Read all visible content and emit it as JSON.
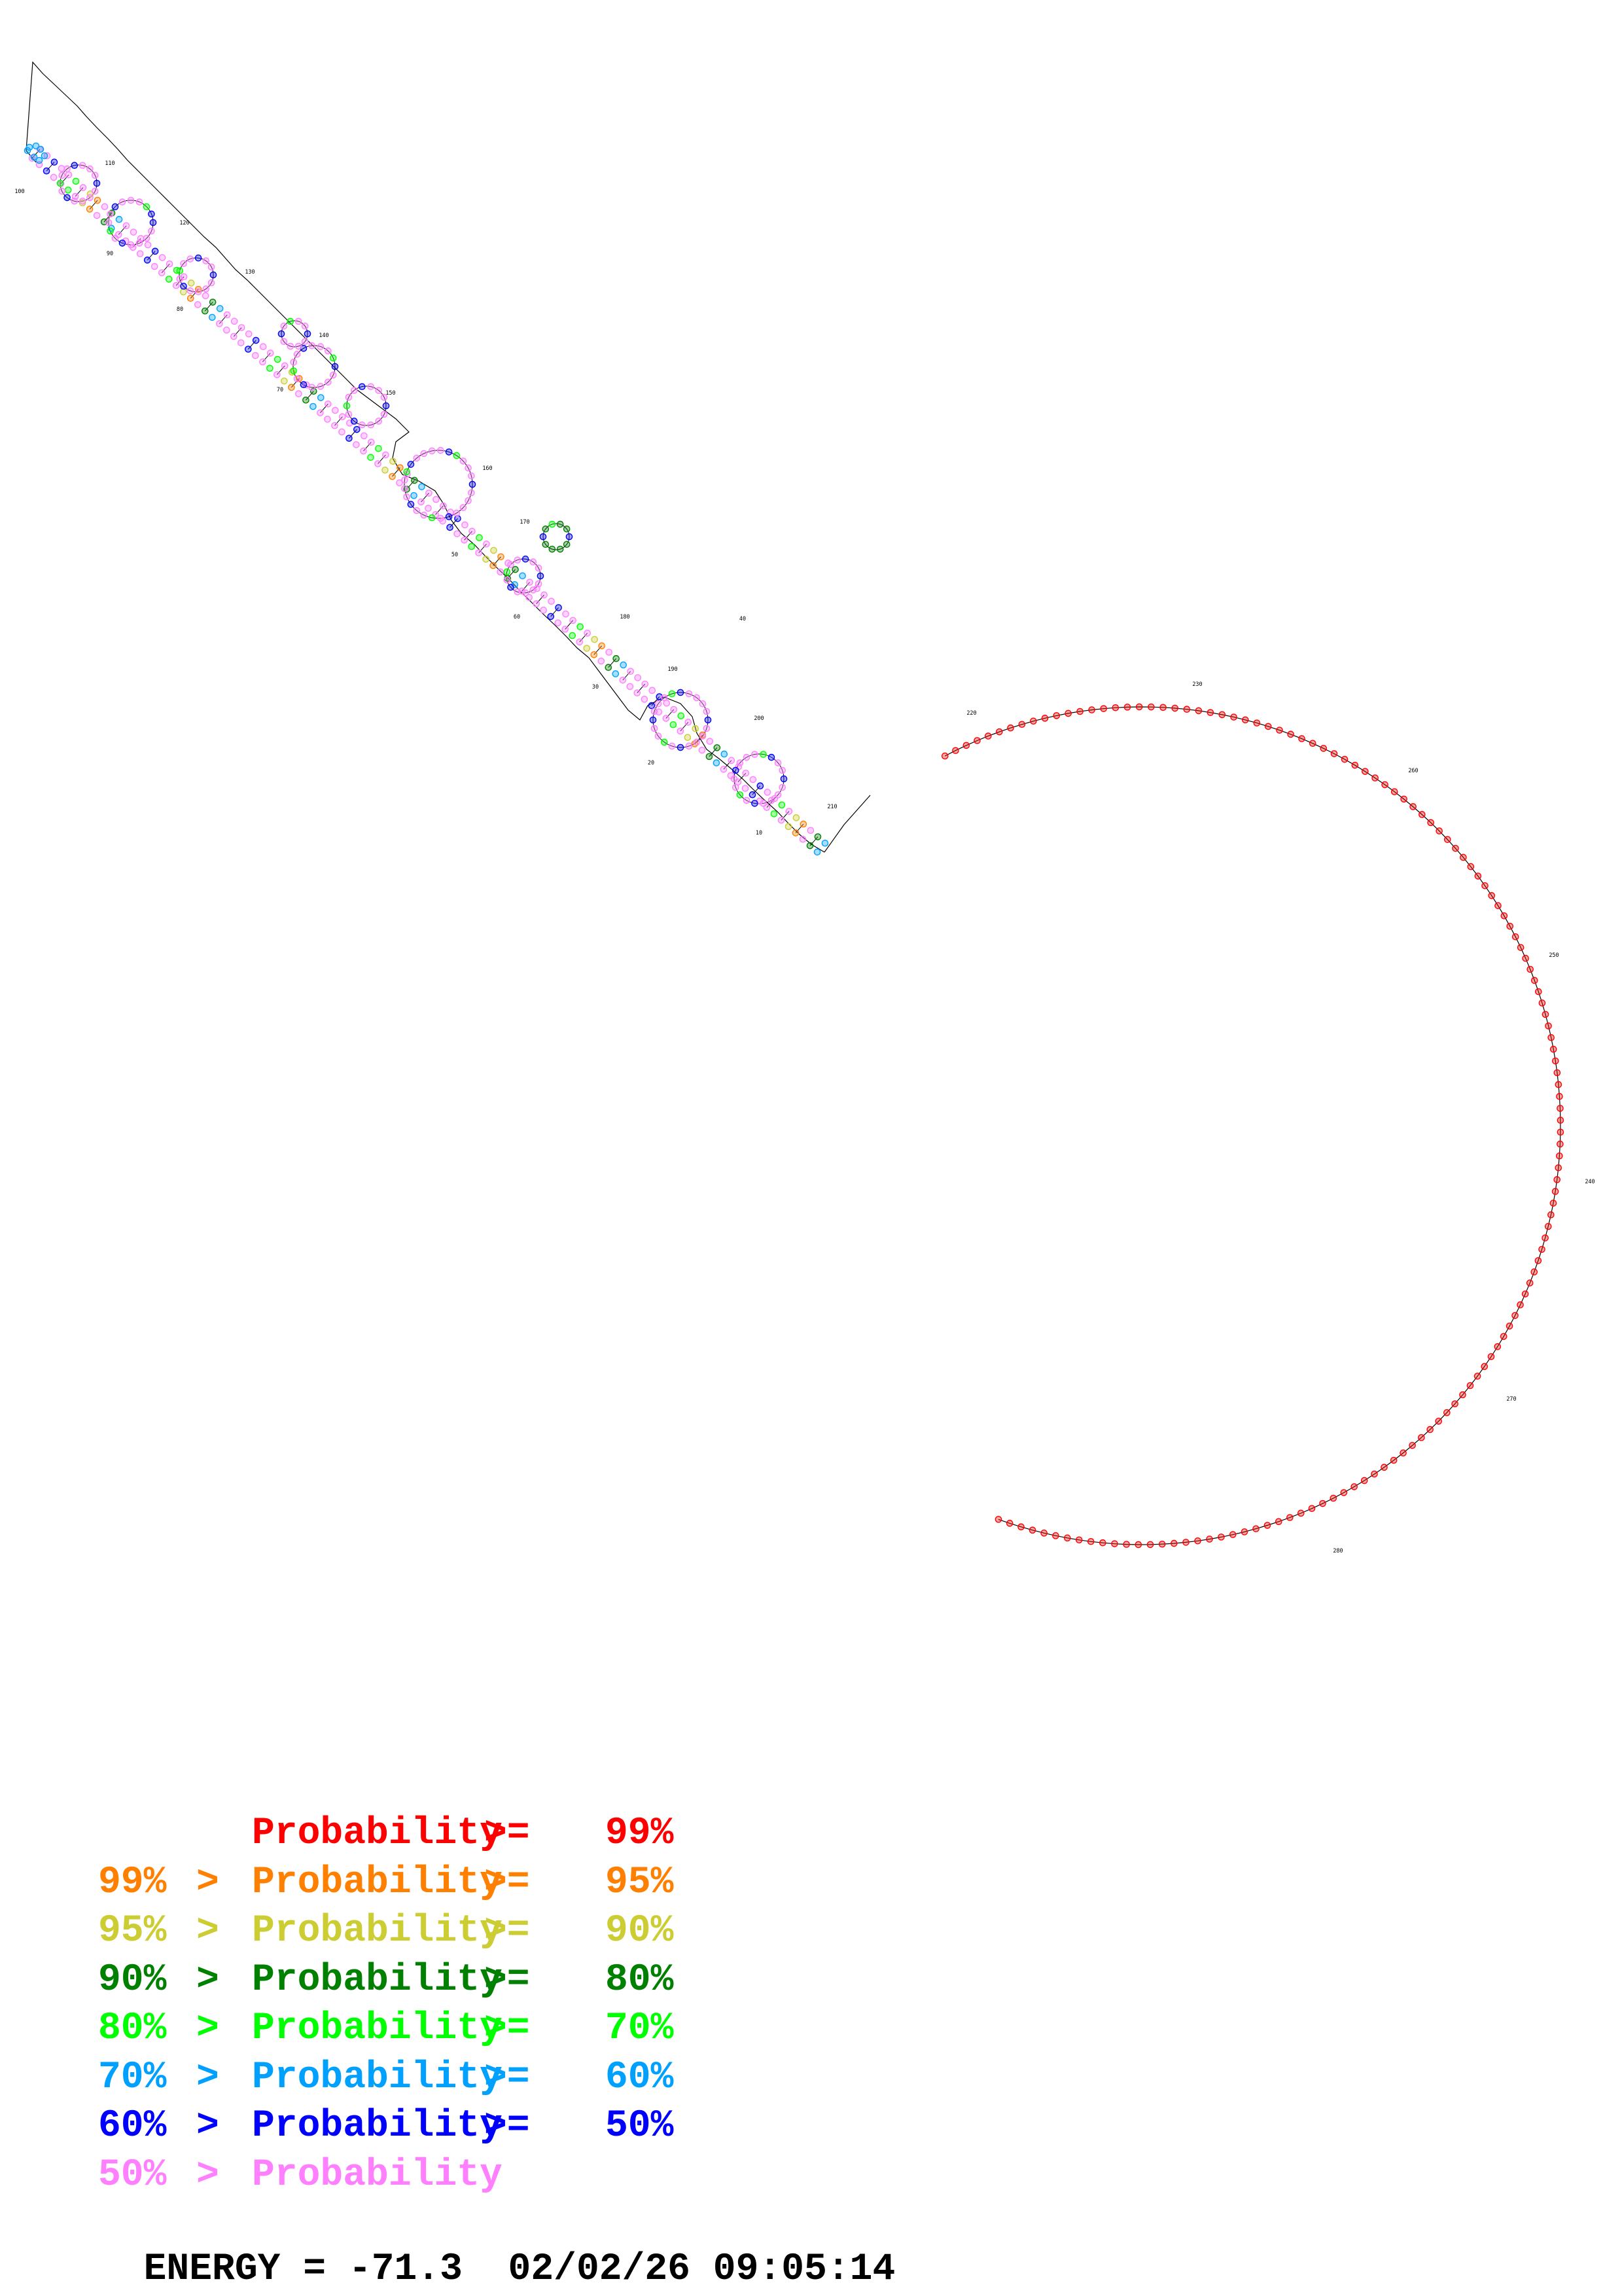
{
  "legend": [
    {
      "lhs": "",
      "gt": "",
      "word": "Probability",
      "ge": ">=",
      "pct": "99%",
      "color": "#ff0000"
    },
    {
      "lhs": "99%",
      "gt": ">",
      "word": "Probability",
      "ge": ">=",
      "pct": "95%",
      "color": "#ff8000"
    },
    {
      "lhs": "95%",
      "gt": ">",
      "word": "Probability",
      "ge": ">=",
      "pct": "90%",
      "color": "#cccc33"
    },
    {
      "lhs": "90%",
      "gt": ">",
      "word": "Probability",
      "ge": ">=",
      "pct": "80%",
      "color": "#008000"
    },
    {
      "lhs": "80%",
      "gt": ">",
      "word": "Probability",
      "ge": ">=",
      "pct": "70%",
      "color": "#00ff00"
    },
    {
      "lhs": "70%",
      "gt": ">",
      "word": "Probability",
      "ge": ">=",
      "pct": "60%",
      "color": "#00a0ff"
    },
    {
      "lhs": "60%",
      "gt": ">",
      "word": "Probability",
      "ge": ">=",
      "pct": "50%",
      "color": "#0000ff"
    },
    {
      "lhs": "50%",
      "gt": ">",
      "word": "Probability",
      "ge": "",
      "pct": "",
      "color": "#ff80ff"
    }
  ],
  "energy": {
    "label": "ENERGY = ",
    "value": "-71.3",
    "timestamp": "02/02/26 09:05:14"
  },
  "tick_labels": [
    "10",
    "20",
    "30",
    "40",
    "50",
    "60",
    "70",
    "80",
    "90",
    "110",
    "120",
    "130",
    "140",
    "150",
    "160",
    "170",
    "180",
    "190",
    "200",
    "210",
    "220",
    "230",
    "240",
    "250",
    "260",
    "270",
    "280",
    "100"
  ],
  "colors": {
    "red": "#ff0000",
    "orange": "#ff8000",
    "yellow": "#cccc33",
    "darkgreen": "#008000",
    "green": "#00ff00",
    "lightblue": "#00a0ff",
    "blue": "#0000ff",
    "pink": "#ff80ff"
  }
}
